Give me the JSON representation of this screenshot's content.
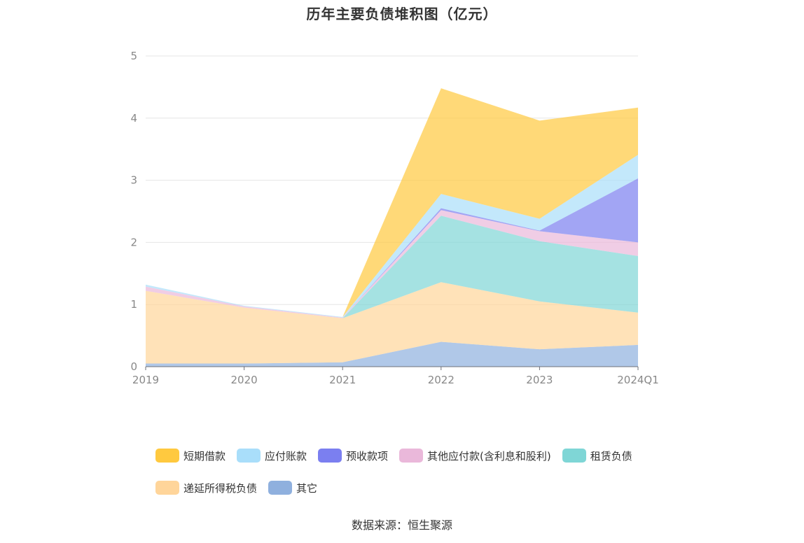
{
  "chart_data": {
    "type": "area",
    "stacked": true,
    "title": "历年主要负债堆积图（亿元）",
    "categories": [
      "2019",
      "2020",
      "2021",
      "2022",
      "2023",
      "2024Q1"
    ],
    "ylim": [
      0,
      5
    ],
    "yticks": [
      "0",
      "1",
      "2",
      "3",
      "4",
      "5"
    ],
    "grid": true,
    "legend_position": "bottom",
    "series": [
      {
        "name": "其它",
        "color": "#8fb0de",
        "values": [
          0.05,
          0.05,
          0.07,
          0.4,
          0.28,
          0.35
        ]
      },
      {
        "name": "递延所得税负债",
        "color": "#ffd59a",
        "values": [
          1.17,
          0.9,
          0.71,
          0.96,
          0.77,
          0.52
        ]
      },
      {
        "name": "租赁负债",
        "color": "#7fd6d6",
        "values": [
          0.0,
          0.0,
          0.0,
          1.07,
          0.97,
          0.91
        ]
      },
      {
        "name": "其他应付款(含利息和股利)",
        "color": "#eab8da",
        "values": [
          0.07,
          0.02,
          0.01,
          0.09,
          0.16,
          0.22
        ]
      },
      {
        "name": "预收款项",
        "color": "#7b7ff0",
        "values": [
          0.0,
          0.0,
          0.0,
          0.03,
          0.01,
          1.03
        ]
      },
      {
        "name": "应付账款",
        "color": "#a9defa",
        "values": [
          0.03,
          0.01,
          0.01,
          0.23,
          0.19,
          0.38
        ]
      },
      {
        "name": "短期借款",
        "color": "#ffc93f",
        "values": [
          0.0,
          0.0,
          0.0,
          1.7,
          1.58,
          0.76
        ]
      }
    ],
    "legend": [
      {
        "name": "短期借款",
        "color": "#ffc93f"
      },
      {
        "name": "应付账款",
        "color": "#a9defa"
      },
      {
        "name": "预收款项",
        "color": "#7b7ff0"
      },
      {
        "name": "其他应付款(含利息和股利)",
        "color": "#eab8da"
      },
      {
        "name": "租赁负债",
        "color": "#7fd6d6"
      },
      {
        "name": "递延所得税负债",
        "color": "#ffd59a"
      },
      {
        "name": "其它",
        "color": "#8fb0de"
      }
    ]
  },
  "source_text": "数据来源：恒生聚源"
}
